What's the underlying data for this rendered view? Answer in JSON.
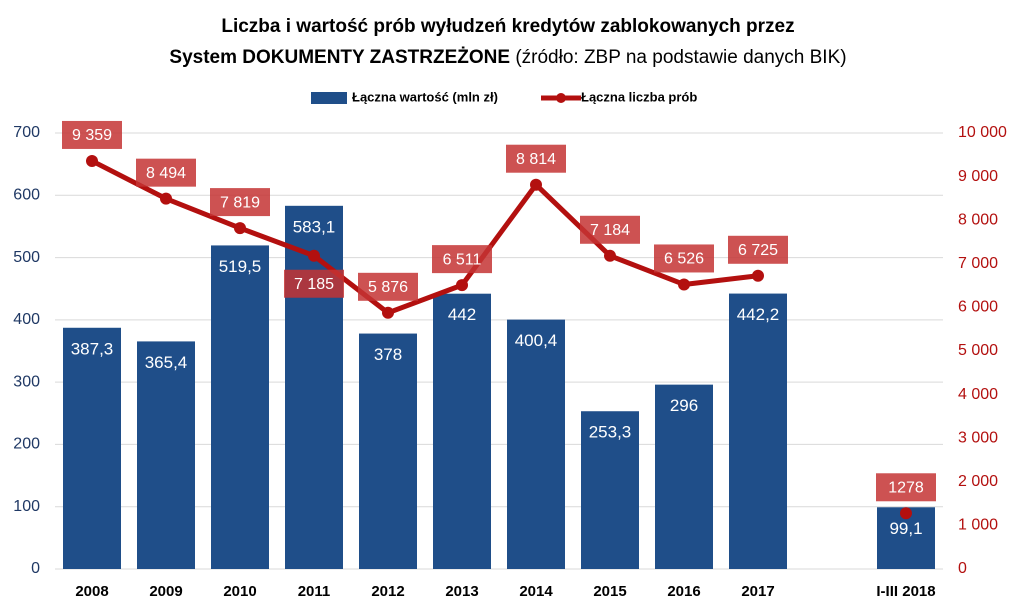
{
  "chart_data": {
    "type": "bar-line",
    "title": [
      "Liczba i wartość prób wyłudzeń kredytów zablokowanych przez",
      "System DOKUMENTY ZASTRZEŻONE",
      "(źródło: ZBP na podstawie danych BIK)"
    ],
    "categories": [
      "2008",
      "2009",
      "2010",
      "2011",
      "2012",
      "2013",
      "2014",
      "2015",
      "2016",
      "2017",
      null,
      "I-III 2018"
    ],
    "series": [
      {
        "name": "Łączna wartość (mln zł)",
        "type": "bar",
        "color": "#1f4e89",
        "values": [
          387.3,
          365.4,
          519.5,
          583.1,
          378,
          442,
          400.4,
          253.3,
          296,
          442.2,
          null,
          99.1
        ],
        "value_labels": [
          "387,3",
          "365,4",
          "519,5",
          "583,1",
          "378",
          "442",
          "400,4",
          "253,3",
          "296",
          "442,2",
          null,
          "99,1"
        ]
      },
      {
        "name": "Łączna liczba prób",
        "type": "line",
        "axis": "y2",
        "color": "#b3100f",
        "values": [
          9359,
          8494,
          7819,
          7185,
          5876,
          6511,
          8814,
          7184,
          6526,
          6725,
          null,
          1278
        ],
        "value_labels": [
          "9 359",
          "8 494",
          "7 819",
          "7 185",
          "5 876",
          "6 511",
          "8 814",
          "7 184",
          "6 526",
          "6 725",
          null,
          "1278"
        ]
      }
    ],
    "ylim": [
      0,
      700
    ],
    "yticks": [
      0,
      100,
      200,
      300,
      400,
      500,
      600,
      700
    ],
    "y2lim": [
      0,
      10000
    ],
    "y2ticks": [
      0,
      {
        "value": 1000,
        "label": "1 000"
      },
      {
        "value": 2000,
        "label": "2 000"
      },
      {
        "value": 3000,
        "label": "3 000"
      },
      {
        "value": 4000,
        "label": "4 000"
      },
      {
        "value": 5000,
        "label": "5 000"
      },
      {
        "value": 6000,
        "label": "6 000"
      },
      {
        "value": 7000,
        "label": "7 000"
      },
      {
        "value": 8000,
        "label": "8 000"
      },
      {
        "value": 9000,
        "label": "9 000"
      },
      {
        "value": 10000,
        "label": "10 000"
      }
    ],
    "grid": true,
    "legend": "top"
  }
}
